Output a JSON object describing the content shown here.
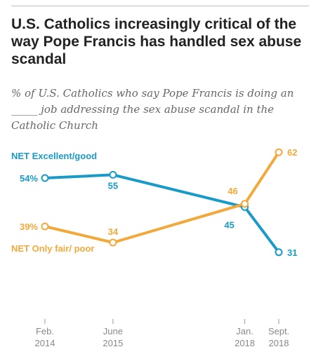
{
  "title": "U.S. Catholics increasingly critical of the way Pope Francis has handled sex abuse scandal",
  "subtitle": "% of U.S. Catholics who say Pope Francis is doing an _____ job addressing the sex abuse scandal in the Catholic Church",
  "chart_data": {
    "type": "line",
    "x": [
      "2014-02",
      "2015-06",
      "2018-01",
      "2018-09"
    ],
    "x_tick_labels": [
      [
        "Feb.",
        "2014"
      ],
      [
        "June",
        "2015"
      ],
      [
        "Jan.",
        "2018"
      ],
      [
        "Sept.",
        "2018"
      ]
    ],
    "series": [
      {
        "name": "NET Excellent/good",
        "color": "#1a9bc7",
        "values": [
          54,
          55,
          45,
          31
        ],
        "labels": [
          "54%",
          "55",
          "45",
          "31"
        ]
      },
      {
        "name": "NET Only fair/ poor",
        "color": "#f2a93b",
        "values": [
          39,
          34,
          46,
          62
        ],
        "labels": [
          "39%",
          "34",
          "46",
          "62"
        ]
      }
    ],
    "grid": false
  }
}
